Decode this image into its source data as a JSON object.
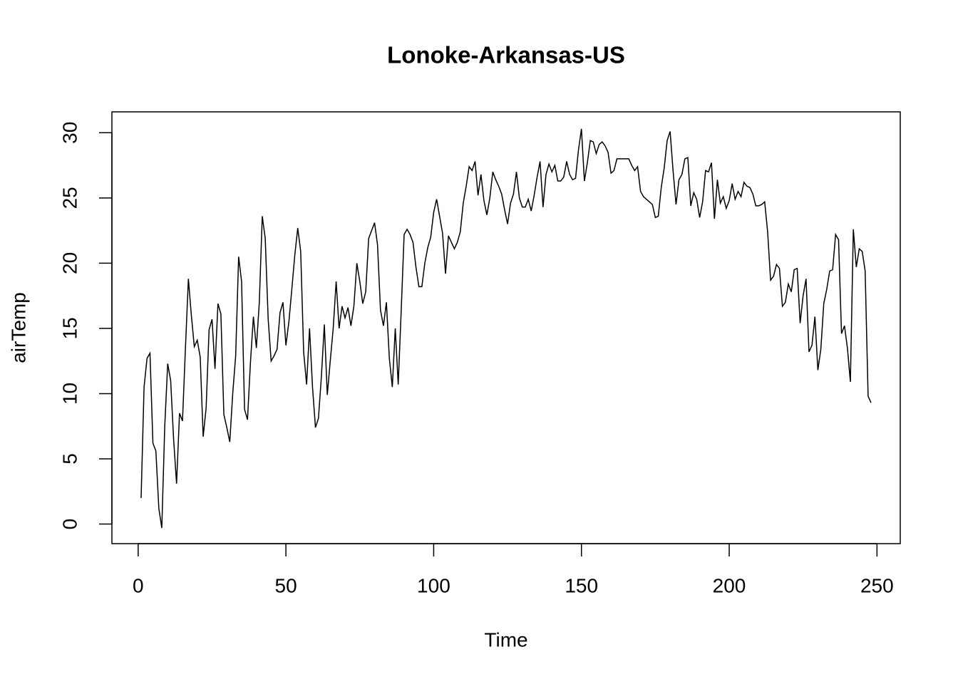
{
  "chart_data": {
    "type": "line",
    "title": "Lonoke-Arkansas-US",
    "x_label": "Time",
    "y_label": "airTemp",
    "x": [
      1,
      2,
      3,
      4,
      5,
      6,
      7,
      8,
      9,
      10,
      11,
      12,
      13,
      14,
      15,
      16,
      17,
      18,
      19,
      20,
      21,
      22,
      23,
      24,
      25,
      26,
      27,
      28,
      29,
      30,
      31,
      32,
      33,
      34,
      35,
      36,
      37,
      38,
      39,
      40,
      41,
      42,
      43,
      44,
      45,
      46,
      47,
      48,
      49,
      50,
      51,
      52,
      53,
      54,
      55,
      56,
      57,
      58,
      59,
      60,
      61,
      62,
      63,
      64,
      65,
      66,
      67,
      68,
      69,
      70,
      71,
      72,
      73,
      74,
      75,
      76,
      77,
      78,
      79,
      80,
      81,
      82,
      83,
      84,
      85,
      86,
      87,
      88,
      89,
      90,
      91,
      92,
      93,
      94,
      95,
      96,
      97,
      98,
      99,
      100,
      101,
      102,
      103,
      104,
      105,
      106,
      107,
      108,
      109,
      110,
      111,
      112,
      113,
      114,
      115,
      116,
      117,
      118,
      119,
      120,
      121,
      122,
      123,
      124,
      125,
      126,
      127,
      128,
      129,
      130,
      131,
      132,
      133,
      134,
      135,
      136,
      137,
      138,
      139,
      140,
      141,
      142,
      143,
      144,
      145,
      146,
      147,
      148,
      149,
      150,
      151,
      152,
      153,
      154,
      155,
      156,
      157,
      158,
      159,
      160,
      161,
      162,
      163,
      164,
      165,
      166,
      167,
      168,
      169,
      170,
      171,
      172,
      173,
      174,
      175,
      176,
      177,
      178,
      179,
      180,
      181,
      182,
      183,
      184,
      185,
      186,
      187,
      188,
      189,
      190,
      191,
      192,
      193,
      194,
      195,
      196,
      197,
      198,
      199,
      200,
      201,
      202,
      203,
      204,
      205,
      206,
      207,
      208,
      209,
      210,
      211,
      212,
      213,
      214,
      215,
      216,
      217,
      218,
      219,
      220,
      221,
      222,
      223,
      224,
      225,
      226,
      227,
      228,
      229,
      230,
      231,
      232,
      233,
      234,
      235,
      236,
      237,
      238,
      239,
      240,
      241,
      242,
      243,
      244,
      245,
      246,
      247,
      248
    ],
    "series": [
      {
        "name": "airTemp",
        "color": "#000000",
        "values": [
          2.0,
          10.5,
          12.7,
          13.1,
          6.2,
          5.6,
          1.2,
          -0.3,
          7.5,
          12.3,
          11.0,
          6.5,
          3.1,
          8.5,
          7.9,
          13.5,
          18.8,
          16.0,
          13.6,
          14.1,
          12.8,
          6.7,
          8.9,
          14.9,
          15.7,
          11.9,
          16.9,
          16.1,
          8.4,
          7.4,
          6.3,
          10.0,
          12.9,
          20.5,
          18.6,
          8.8,
          8.0,
          12.4,
          15.9,
          13.5,
          17.0,
          23.6,
          21.9,
          15.7,
          12.5,
          12.9,
          13.4,
          16.2,
          17.0,
          13.7,
          15.5,
          18.0,
          20.6,
          22.7,
          20.9,
          13.2,
          10.7,
          15.0,
          10.5,
          7.4,
          8.1,
          11.3,
          15.3,
          9.9,
          12.5,
          15.0,
          18.6,
          15.0,
          16.7,
          15.8,
          16.6,
          15.2,
          16.7,
          20.0,
          18.6,
          16.9,
          17.8,
          21.9,
          22.5,
          23.1,
          21.4,
          16.4,
          15.2,
          17.0,
          12.7,
          10.5,
          15.0,
          10.7,
          16.3,
          22.2,
          22.6,
          22.2,
          21.6,
          19.7,
          18.2,
          18.2,
          20.0,
          21.2,
          22.0,
          23.9,
          24.9,
          23.6,
          22.3,
          19.2,
          22.1,
          21.6,
          21.1,
          21.6,
          22.4,
          24.6,
          25.9,
          27.4,
          27.1,
          27.8,
          25.2,
          26.8,
          24.8,
          23.7,
          25.0,
          27.0,
          26.4,
          25.9,
          25.3,
          24.1,
          23.0,
          24.6,
          25.3,
          27.0,
          25.0,
          24.3,
          24.3,
          24.9,
          24.0,
          25.2,
          26.6,
          27.8,
          24.3,
          26.8,
          27.6,
          27.0,
          27.5,
          26.3,
          26.3,
          26.6,
          27.8,
          26.8,
          26.4,
          26.5,
          28.7,
          30.3,
          26.3,
          27.7,
          29.4,
          29.3,
          28.4,
          29.1,
          29.3,
          29.0,
          28.5,
          26.9,
          27.1,
          28.0,
          28.0,
          28.0,
          28.0,
          28.0,
          27.5,
          27.1,
          27.4,
          25.5,
          25.1,
          24.9,
          24.7,
          24.5,
          23.5,
          23.6,
          25.8,
          27.3,
          29.4,
          30.1,
          27.1,
          24.5,
          26.4,
          26.8,
          28.0,
          28.1,
          24.4,
          25.4,
          24.9,
          23.5,
          24.7,
          27.1,
          27.0,
          27.7,
          23.4,
          26.4,
          24.6,
          25.1,
          24.2,
          24.8,
          26.1,
          24.9,
          25.5,
          25.1,
          26.2,
          25.9,
          25.8,
          25.3,
          24.4,
          24.4,
          24.5,
          24.7,
          22.4,
          18.7,
          19.0,
          19.9,
          19.6,
          16.7,
          17.0,
          18.4,
          17.8,
          19.5,
          19.6,
          15.4,
          17.5,
          18.8,
          13.2,
          13.7,
          15.9,
          11.8,
          13.4,
          16.9,
          18.0,
          19.4,
          19.5,
          22.2,
          21.8,
          14.6,
          15.2,
          13.5,
          10.9,
          22.6,
          19.7,
          21.1,
          20.9,
          19.4,
          9.8,
          9.3
        ]
      }
    ],
    "xlim": [
      -8.88,
      257.88
    ],
    "ylim": [
      -1.5,
      31.6
    ],
    "xticks": [
      0,
      50,
      100,
      150,
      200,
      250
    ],
    "yticks": [
      0,
      5,
      10,
      15,
      20,
      25,
      30
    ]
  }
}
